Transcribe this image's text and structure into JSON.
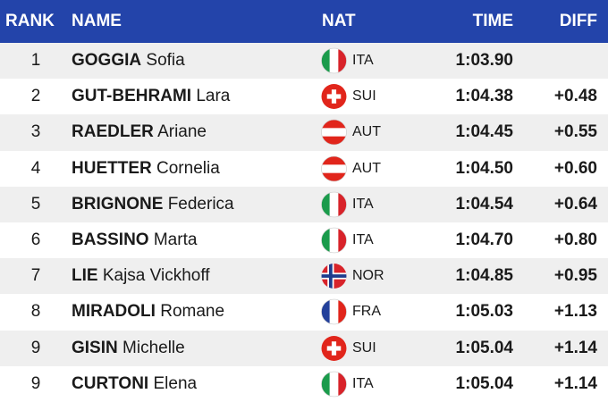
{
  "header": {
    "rank": "RANK",
    "name": "NAME",
    "nat": "NAT",
    "time": "TIME",
    "diff": "DIFF"
  },
  "rows": [
    {
      "rank": 1,
      "surname": "GOGGIA",
      "given": "Sofia",
      "nat": "ITA",
      "time": "1:03.90"
    },
    {
      "rank": 2,
      "surname": "GUT-BEHRAMI",
      "given": "Lara",
      "nat": "SUI",
      "time": "1:04.38",
      "diff": "+0.48"
    },
    {
      "rank": 3,
      "surname": "RAEDLER",
      "given": "Ariane",
      "nat": "AUT",
      "time": "1:04.45",
      "diff": "+0.55"
    },
    {
      "rank": 4,
      "surname": "HUETTER",
      "given": "Cornelia",
      "nat": "AUT",
      "time": "1:04.50",
      "diff": "+0.60"
    },
    {
      "rank": 5,
      "surname": "BRIGNONE",
      "given": "Federica",
      "nat": "ITA",
      "time": "1:04.54",
      "diff": "+0.64"
    },
    {
      "rank": 6,
      "surname": "BASSINO",
      "given": "Marta",
      "nat": "ITA",
      "time": "1:04.70",
      "diff": "+0.80"
    },
    {
      "rank": 7,
      "surname": "LIE",
      "given": "Kajsa Vickhoff",
      "nat": "NOR",
      "time": "1:04.85",
      "diff": "+0.95"
    },
    {
      "rank": 8,
      "surname": "MIRADOLI",
      "given": "Romane",
      "nat": "FRA",
      "time": "1:05.03",
      "diff": "+1.13"
    },
    {
      "rank": 9,
      "surname": "GISIN",
      "given": "Michelle",
      "nat": "SUI",
      "time": "1:05.04",
      "diff": "+1.14"
    },
    {
      "rank": 9,
      "surname": "CURTONI",
      "given": "Elena",
      "nat": "ITA",
      "time": "1:05.04",
      "diff": "+1.14"
    }
  ]
}
